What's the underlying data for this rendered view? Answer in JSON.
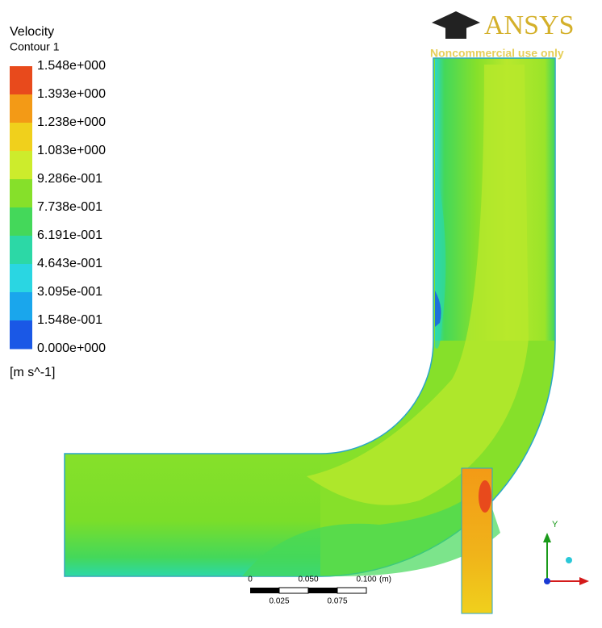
{
  "legend": {
    "title": "Velocity",
    "subtitle": "Contour 1",
    "labels": [
      "1.548e+000",
      "1.393e+000",
      "1.238e+000",
      "1.083e+000",
      "9.286e-001",
      "7.738e-001",
      "6.191e-001",
      "4.643e-001",
      "3.095e-001",
      "1.548e-001",
      "0.000e+000"
    ],
    "colors": [
      "#e84a1c",
      "#f39a16",
      "#f0d01c",
      "#cdec2c",
      "#86e02a",
      "#44d85a",
      "#2cd8a6",
      "#2ad6e2",
      "#1aa6ec",
      "#1a58e6"
    ],
    "unit": "[m s^-1]"
  },
  "logo": {
    "name": "ANSYS",
    "note": "Noncommercial use only"
  },
  "scale_bar": {
    "top_labels": [
      "0",
      "0.050",
      "0.100",
      "(m)"
    ],
    "bottom_labels": [
      "0.025",
      "0.075"
    ]
  },
  "axes": {
    "y_label": "Y"
  }
}
